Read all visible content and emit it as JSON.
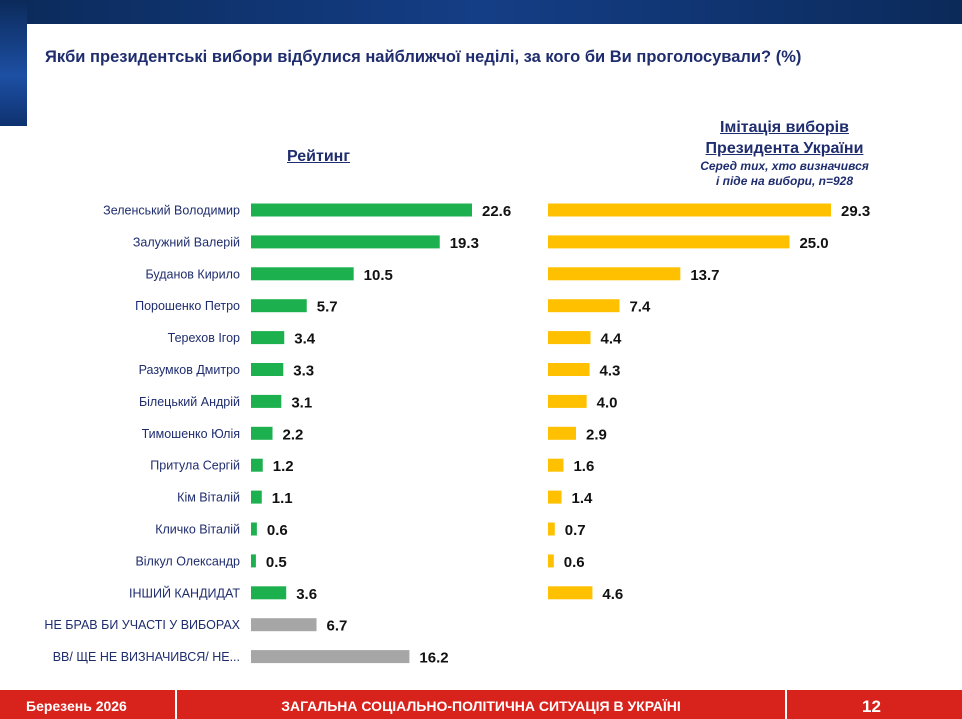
{
  "question": "Якби президентські вибори відбулися найближчої неділі, за кого би Ви проголосували? (%)",
  "rating_header": "Рейтинг",
  "imitation_header_line1": "Імітація виборів",
  "imitation_header_line2": "Президента України",
  "imitation_sub_line1": "Серед тих, хто визначився",
  "imitation_sub_line2": "і піде на вибори, n=928",
  "colors": {
    "rating": "#1db04f",
    "imitation": "#ffc000",
    "other": "#a6a6a6",
    "footer": "#d8221c",
    "navy": "#1f2d6e"
  },
  "chart_data": [
    {
      "type": "bar",
      "orientation": "horizontal",
      "title": "Рейтинг",
      "categories": [
        "Зеленський Володимир",
        "Залужний Валерій",
        "Буданов Кирило",
        "Порошенко Петро",
        "Терехов Ігор",
        "Разумков Дмитро",
        "Білецький Андрій",
        "Тимошенко Юлія",
        "Притула Сергій",
        "Кім Віталій",
        "Кличко Віталій",
        "Вілкул Олександр",
        "ІНШИЙ КАНДИДАТ",
        "НЕ БРАВ БИ УЧАСТІ У ВИБОРАХ",
        "ВВ/ ЩЕ НЕ ВИЗНАЧИВСЯ/ НЕ..."
      ],
      "values": [
        22.6,
        19.3,
        10.5,
        5.7,
        3.4,
        3.3,
        3.1,
        2.2,
        1.2,
        1.1,
        0.6,
        0.5,
        3.6,
        6.7,
        16.2
      ],
      "value_labels": [
        "22.6",
        "19.3",
        "10.5",
        "5.7",
        "3.4",
        "3.3",
        "3.1",
        "2.2",
        "1.2",
        "1.1",
        "0.6",
        "0.5",
        "3.6",
        "6.7",
        "16.2"
      ],
      "grey_categories": [
        "НЕ БРАВ БИ УЧАСТІ У ВИБОРАХ",
        "ВВ/ ЩЕ НЕ ВИЗНАЧИВСЯ/ НЕ..."
      ]
    },
    {
      "type": "bar",
      "orientation": "horizontal",
      "title": "Імітація виборів Президента України",
      "categories": [
        "Зеленський Володимир",
        "Залужний Валерій",
        "Буданов Кирило",
        "Порошенко Петро",
        "Терехов Ігор",
        "Разумков Дмитро",
        "Білецький Андрій",
        "Тимошенко Юлія",
        "Притула Сергій",
        "Кім Віталій",
        "Кличко Віталій",
        "Вілкул Олександр",
        "ІНШИЙ КАНДИДАТ"
      ],
      "values": [
        29.3,
        25.0,
        13.7,
        7.4,
        4.4,
        4.3,
        4.0,
        2.9,
        1.6,
        1.4,
        0.7,
        0.6,
        4.6
      ],
      "value_labels": [
        "29.3",
        "25.0",
        "13.7",
        "7.4",
        "4.4",
        "4.3",
        "4.0",
        "2.9",
        "1.6",
        "1.4",
        "0.7",
        "0.6",
        "4.6"
      ]
    }
  ],
  "footer": {
    "date": "Березень 2026",
    "title": "ЗАГАЛЬНА СОЦІАЛЬНО-ПОЛІТИЧНА СИТУАЦІЯ В УКРАЇНІ",
    "page": "12"
  }
}
